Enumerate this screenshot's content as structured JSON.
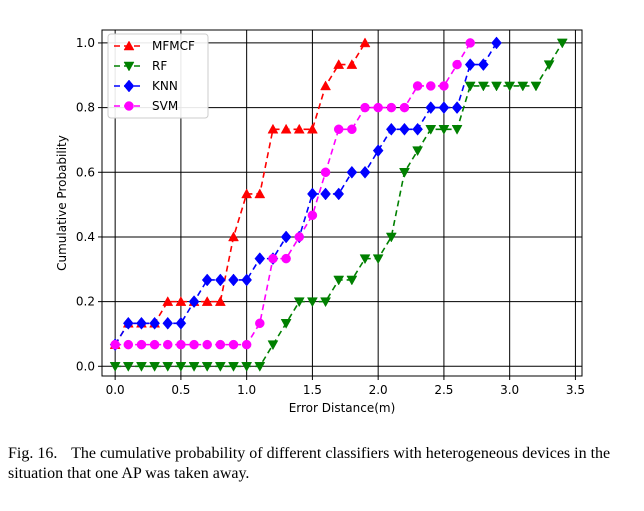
{
  "caption": {
    "figure_label": "Fig. 16.",
    "text": "The cumulative probability of different classifiers with heterogeneous devices in the situation that one AP was taken away."
  },
  "chart_data": {
    "type": "line",
    "title": "",
    "xlabel": "Error Distance(m)",
    "ylabel": "Cumulative Probability",
    "xlim": [
      -0.1,
      3.55
    ],
    "ylim": [
      -0.03,
      1.04
    ],
    "xticks": [
      0.0,
      0.5,
      1.0,
      1.5,
      2.0,
      2.5,
      3.0,
      3.5
    ],
    "xtick_labels": [
      "0.0",
      "0.5",
      "1.0",
      "1.5",
      "2.0",
      "2.5",
      "3.0",
      "3.5"
    ],
    "yticks": [
      0.0,
      0.2,
      0.4,
      0.6,
      0.8,
      1.0
    ],
    "ytick_labels": [
      "0.0",
      "0.2",
      "0.4",
      "0.6",
      "0.8",
      "1.0"
    ],
    "grid": true,
    "legend_position": "top-left",
    "series": [
      {
        "name": "MFMCF",
        "color": "#ff0000",
        "marker": "triangle-up",
        "x": [
          0.0,
          0.1,
          0.2,
          0.3,
          0.4,
          0.5,
          0.6,
          0.7,
          0.8,
          0.9,
          1.0,
          1.1,
          1.2,
          1.3,
          1.4,
          1.5,
          1.6,
          1.7,
          1.8,
          1.9
        ],
        "y": [
          0.067,
          0.133,
          0.133,
          0.133,
          0.2,
          0.2,
          0.2,
          0.2,
          0.2,
          0.4,
          0.533,
          0.533,
          0.733,
          0.733,
          0.733,
          0.733,
          0.867,
          0.933,
          0.933,
          1.0
        ]
      },
      {
        "name": "RF",
        "color": "#008000",
        "marker": "triangle-down",
        "x": [
          0.0,
          0.1,
          0.2,
          0.3,
          0.4,
          0.5,
          0.6,
          0.7,
          0.8,
          0.9,
          1.0,
          1.1,
          1.2,
          1.3,
          1.4,
          1.5,
          1.6,
          1.7,
          1.8,
          1.9,
          2.0,
          2.1,
          2.2,
          2.3,
          2.4,
          2.5,
          2.6,
          2.7,
          2.8,
          2.9,
          3.0,
          3.1,
          3.2,
          3.3,
          3.4
        ],
        "y": [
          0.0,
          0.0,
          0.0,
          0.0,
          0.0,
          0.0,
          0.0,
          0.0,
          0.0,
          0.0,
          0.0,
          0.0,
          0.067,
          0.133,
          0.2,
          0.2,
          0.2,
          0.267,
          0.267,
          0.333,
          0.333,
          0.4,
          0.6,
          0.667,
          0.733,
          0.733,
          0.733,
          0.867,
          0.867,
          0.867,
          0.867,
          0.867,
          0.867,
          0.933,
          1.0
        ]
      },
      {
        "name": "KNN",
        "color": "#0000ff",
        "marker": "diamond",
        "x": [
          0.0,
          0.1,
          0.2,
          0.3,
          0.4,
          0.5,
          0.6,
          0.7,
          0.8,
          0.9,
          1.0,
          1.1,
          1.2,
          1.3,
          1.4,
          1.5,
          1.6,
          1.7,
          1.8,
          1.9,
          2.0,
          2.1,
          2.2,
          2.3,
          2.4,
          2.5,
          2.6,
          2.7,
          2.8,
          2.9
        ],
        "y": [
          0.067,
          0.133,
          0.133,
          0.133,
          0.133,
          0.133,
          0.2,
          0.267,
          0.267,
          0.267,
          0.267,
          0.333,
          0.333,
          0.4,
          0.4,
          0.533,
          0.533,
          0.533,
          0.6,
          0.6,
          0.667,
          0.733,
          0.733,
          0.733,
          0.8,
          0.8,
          0.8,
          0.933,
          0.933,
          1.0
        ]
      },
      {
        "name": "SVM",
        "color": "#ff00ff",
        "marker": "circle",
        "x": [
          0.0,
          0.1,
          0.2,
          0.3,
          0.4,
          0.5,
          0.6,
          0.7,
          0.8,
          0.9,
          1.0,
          1.1,
          1.2,
          1.3,
          1.4,
          1.5,
          1.6,
          1.7,
          1.8,
          1.9,
          2.0,
          2.1,
          2.2,
          2.3,
          2.4,
          2.5,
          2.6,
          2.7
        ],
        "y": [
          0.067,
          0.067,
          0.067,
          0.067,
          0.067,
          0.067,
          0.067,
          0.067,
          0.067,
          0.067,
          0.067,
          0.133,
          0.333,
          0.333,
          0.4,
          0.467,
          0.6,
          0.733,
          0.733,
          0.8,
          0.8,
          0.8,
          0.8,
          0.867,
          0.867,
          0.867,
          0.933,
          1.0
        ]
      }
    ]
  }
}
